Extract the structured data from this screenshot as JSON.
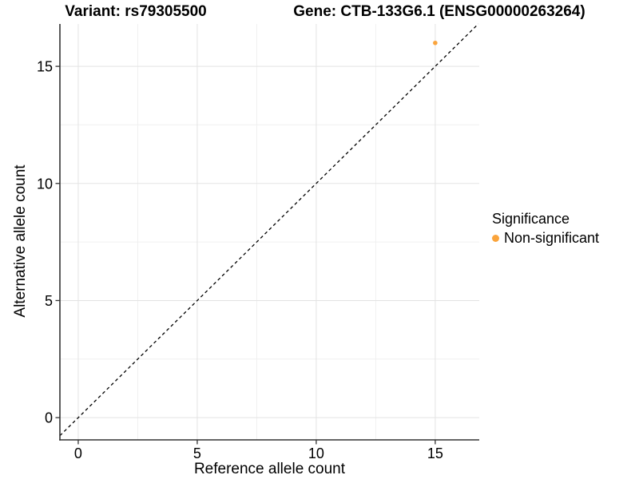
{
  "chart_data": {
    "type": "scatter",
    "title_left": "Variant: rs79305500",
    "title_right": "Gene: CTB-133G6.1 (ENSG00000263264)",
    "xlabel": "Reference allele count",
    "ylabel": "Alternative allele count",
    "x_ticks": [
      0,
      5,
      10,
      15
    ],
    "y_ticks": [
      0,
      5,
      10,
      15
    ],
    "x_minor": [
      2.5,
      7.5,
      12.5
    ],
    "y_minor": [
      2.5,
      7.5,
      12.5
    ],
    "xlim": [
      -0.77,
      16.85
    ],
    "ylim": [
      -0.95,
      16.81
    ],
    "grid": true,
    "points": [
      {
        "x": 15,
        "y": 16,
        "series": "Non-significant"
      }
    ],
    "identity_line": {
      "style": "dashed",
      "equation": "y = x",
      "color": "#000000"
    },
    "legend": {
      "title": "Significance",
      "position": "right",
      "items": [
        {
          "label": "Non-significant",
          "color": "#FAA43C"
        }
      ]
    },
    "colors": {
      "point": "#FAA43C",
      "grid_major": "#e3e3e3",
      "grid_minor": "#f0f0f0",
      "axis_line": "#333333",
      "tick": "#333333",
      "text": "#000000"
    }
  }
}
